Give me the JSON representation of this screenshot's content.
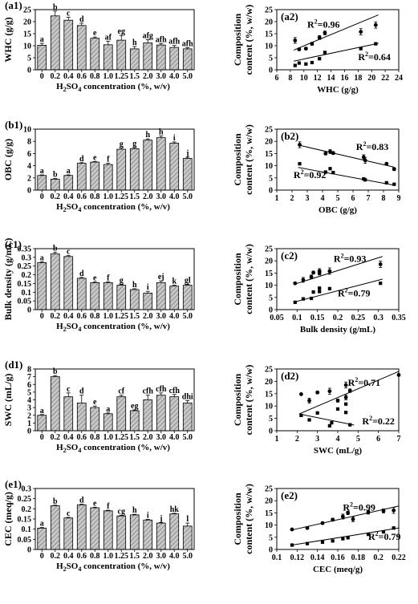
{
  "colors": {
    "bar_fill": "#c8c8c8",
    "bar_hatch": "#6e6e6e",
    "axis": "#000000",
    "point": "#000000"
  },
  "chart_data": [
    {
      "id": "a1",
      "type": "bar",
      "panel_label": "(a1)",
      "ylabel": "WHC (g/g)",
      "xlabel_parts": [
        "H",
        "2",
        "SO",
        "4",
        " concentration (%, w/v)"
      ],
      "categories": [
        "0",
        "0.2",
        "0.4",
        "0.6",
        "0.8",
        "1.0",
        "1.25",
        "1.5",
        "2.0",
        "3.0",
        "4.0",
        "5.0"
      ],
      "values": [
        10.2,
        22.4,
        20.6,
        18.4,
        13.1,
        10.4,
        12.3,
        8.7,
        11.2,
        10.3,
        9.3,
        8.7
      ],
      "errors": [
        0.8,
        2.0,
        1.2,
        1.0,
        0.5,
        1.5,
        2.0,
        1.0,
        1.3,
        0.6,
        0.8,
        0.5
      ],
      "letters": [
        "a",
        "b",
        "c",
        "d",
        "e",
        "af",
        "eg",
        "h",
        "afg",
        "afh",
        "afh",
        "afh"
      ],
      "ylim": [
        0,
        25
      ],
      "yticks": [
        0,
        5,
        10,
        15,
        20,
        25
      ]
    },
    {
      "id": "b1",
      "type": "bar",
      "panel_label": "(b1)",
      "ylabel": "OBC (g/g)",
      "xlabel_parts": [
        "H",
        "2",
        "SO",
        "4",
        " concentration (%, w/v)"
      ],
      "categories": [
        "0",
        "0.2",
        "0.4",
        "0.6",
        "0.8",
        "1.0",
        "1.25",
        "1.5",
        "2.0",
        "3.0",
        "4.0",
        "5.0"
      ],
      "values": [
        2.4,
        1.8,
        2.4,
        4.4,
        4.6,
        4.2,
        6.7,
        6.8,
        8.2,
        8.6,
        7.7,
        5.2
      ],
      "errors": [
        0.1,
        0.1,
        0.1,
        0.1,
        0.1,
        0.2,
        0.2,
        0.2,
        0.2,
        0.3,
        0.2,
        0.2
      ],
      "letters": [
        "a",
        "b",
        "a",
        "d",
        "e",
        "f",
        "g",
        "g",
        "h",
        "h",
        "i",
        "j"
      ],
      "ylim": [
        0,
        10
      ],
      "yticks": [
        0,
        2,
        4,
        6,
        8,
        10
      ]
    },
    {
      "id": "c1",
      "type": "bar",
      "panel_label": "(c1)",
      "ylabel": "Bulk density (g/mL)",
      "xlabel_parts": [
        "H",
        "2",
        "SO",
        "4",
        " concentration (%, w/v)"
      ],
      "categories": [
        "0",
        "0.2",
        "0.4",
        "0.6",
        "0.8",
        "1.0",
        "1.25",
        "1.5",
        "2.0",
        "3.0",
        "4.0",
        "5.0"
      ],
      "values": [
        0.27,
        0.32,
        0.305,
        0.18,
        0.155,
        0.155,
        0.14,
        0.115,
        0.095,
        0.155,
        0.135,
        0.14
      ],
      "errors": [
        0.005,
        0.01,
        0.005,
        0.005,
        0.005,
        0.005,
        0.005,
        0.005,
        0.01,
        0.01,
        0.005,
        0.005
      ],
      "letters": [
        "a",
        "b",
        "c",
        "d",
        "e",
        "f",
        "g",
        "h",
        "i",
        "ej",
        "k",
        "gl"
      ],
      "ylim": [
        0,
        0.35
      ],
      "yticks": [
        0,
        0.05,
        0.1,
        0.15,
        0.2,
        0.25,
        0.3,
        0.35
      ]
    },
    {
      "id": "d1",
      "type": "bar",
      "panel_label": "(d1)",
      "ylabel": "SWC (mL/g)",
      "xlabel_parts": [
        "H",
        "2",
        "SO",
        "4",
        " concentration (%, w/v)"
      ],
      "categories": [
        "0",
        "0.2",
        "0.4",
        "0.6",
        "0.8",
        "1.0",
        "1.25",
        "1.5",
        "2.0",
        "3.0",
        "4.0",
        "5.0"
      ],
      "values": [
        2.0,
        7.0,
        4.4,
        3.6,
        3.0,
        2.2,
        4.4,
        2.6,
        4.0,
        4.6,
        4.4,
        3.6
      ],
      "errors": [
        0.1,
        0.15,
        0.5,
        1.0,
        0.2,
        0.1,
        0.2,
        0.1,
        0.6,
        0.3,
        0.3,
        0.3
      ],
      "letters": [
        "a",
        "b",
        "c",
        "d",
        "e",
        "a",
        "cf",
        "eg",
        "cfh",
        "cfh",
        "cfh",
        "dhi"
      ],
      "ylim": [
        0,
        8
      ],
      "yticks": [
        0,
        1,
        2,
        3,
        4,
        5,
        6,
        7,
        8
      ]
    },
    {
      "id": "e1",
      "type": "bar",
      "panel_label": "(e1)",
      "ylabel": "CEC (meq/g)",
      "xlabel_parts": [
        "H",
        "2",
        "SO",
        "4",
        " concentration (%, w/v)"
      ],
      "categories": [
        "0",
        "0.2",
        "0.4",
        "0.6",
        "0.8",
        "1.0",
        "1.25",
        "1.5",
        "2.0",
        "3.0",
        "4.0",
        "5.0"
      ],
      "values": [
        0.105,
        0.215,
        0.155,
        0.22,
        0.205,
        0.19,
        0.165,
        0.17,
        0.145,
        0.13,
        0.175,
        0.115
      ],
      "errors": [
        0.003,
        0.003,
        0.003,
        0.003,
        0.003,
        0.003,
        0.003,
        0.003,
        0.003,
        0.003,
        0.003,
        0.015
      ],
      "letters": [
        "a",
        "b",
        "c",
        "d",
        "e",
        "f",
        "cg",
        "h",
        "i",
        "j",
        "hk",
        "l"
      ],
      "ylim": [
        0,
        0.3
      ],
      "yticks": [
        0,
        0.05,
        0.1,
        0.15,
        0.2,
        0.25,
        0.3
      ]
    },
    {
      "id": "a2",
      "type": "scatter",
      "panel_label": "(a2)",
      "ylabel_lines": [
        "Composition",
        "content (%, w/w)"
      ],
      "xlabel": "WHC (g/g)",
      "xlim": [
        6,
        24
      ],
      "xticks": [
        6,
        8,
        10,
        12,
        14,
        16,
        18,
        20,
        22,
        24
      ],
      "ylim": [
        0,
        25
      ],
      "yticks": [
        0,
        5,
        10,
        15,
        20,
        25
      ],
      "series": [
        {
          "r2": "0.96",
          "x": [
            8.7,
            9.3,
            10.3,
            11.2,
            12.3,
            13.1,
            18.4,
            20.6
          ],
          "y": [
            12.2,
            8.5,
            8.8,
            10.8,
            13.4,
            15.3,
            15.8,
            18.6
          ],
          "err": [
            1.2,
            0.5,
            0.5,
            0.6,
            0.8,
            0.8,
            1.3,
            1.3
          ],
          "fit": [
            [
              8.5,
              8.2
            ],
            [
              21,
              22.8
            ]
          ],
          "label_pos": [
            10.5,
            17.5
          ]
        },
        {
          "r2": "0.64",
          "x": [
            8.7,
            9.3,
            10.3,
            11.2,
            12.3,
            13.1,
            18.4,
            20.6
          ],
          "y": [
            1.8,
            2.8,
            2.4,
            3.0,
            4.6,
            7.2,
            8.8,
            10.8
          ],
          "err": [
            0,
            0,
            0,
            0,
            0,
            0,
            0,
            0
          ],
          "fit": [
            [
              8.5,
              3.6
            ],
            [
              21,
              11
            ]
          ],
          "label_pos": [
            18.0,
            4.0
          ]
        }
      ]
    },
    {
      "id": "b2",
      "type": "scatter",
      "panel_label": "(b2)",
      "ylabel_lines": [
        "Composition",
        "content (%, w/w)"
      ],
      "xlabel": "OBC (g/g)",
      "xlim": [
        1,
        9
      ],
      "xticks": [
        1,
        2,
        3,
        4,
        5,
        6,
        7,
        8,
        9
      ],
      "ylim": [
        0,
        25
      ],
      "yticks": [
        0,
        5,
        10,
        15,
        20,
        25
      ],
      "series": [
        {
          "r2": "0.83",
          "x": [
            2.5,
            4.2,
            4.5,
            4.7,
            6.7,
            6.8,
            8.2,
            8.7
          ],
          "y": [
            18.6,
            15.0,
            15.8,
            15.2,
            13.5,
            12.2,
            10.8,
            8.6
          ],
          "err": [
            1.2,
            0.5,
            0.8,
            0.6,
            1.0,
            1.2,
            0.4,
            0.6
          ],
          "fit": [
            [
              2.4,
              18.5
            ],
            [
              8.7,
              9.4
            ]
          ],
          "label_pos": [
            6.2,
            16.5
          ]
        },
        {
          "r2": "0.92",
          "x": [
            2.5,
            4.2,
            4.5,
            4.7,
            6.7,
            6.8,
            8.2,
            8.7
          ],
          "y": [
            10.8,
            7.4,
            8.8,
            7.2,
            4.6,
            4.2,
            3.0,
            2.4
          ],
          "err": [
            0,
            0,
            0,
            0,
            0,
            0,
            0,
            0
          ],
          "fit": [
            [
              2.4,
              9.3
            ],
            [
              8.7,
              2.0
            ]
          ],
          "label_pos": [
            2.1,
            5.0
          ]
        }
      ]
    },
    {
      "id": "c2",
      "type": "scatter",
      "panel_label": "(c2)",
      "ylabel_lines": [
        "Composition",
        "content (%, w/w)"
      ],
      "xlabel": "Bulk density (g/mL)",
      "xlim": [
        0.05,
        0.35
      ],
      "xticks": [
        0.05,
        0.1,
        0.15,
        0.2,
        0.25,
        0.3,
        0.35
      ],
      "ylim": [
        0,
        25
      ],
      "yticks": [
        0,
        5,
        10,
        15,
        20,
        25
      ],
      "series": [
        {
          "r2": "0.93",
          "x": [
            0.095,
            0.115,
            0.135,
            0.14,
            0.155,
            0.155,
            0.18,
            0.305
          ],
          "y": [
            10.8,
            12.2,
            13.4,
            15.2,
            15.8,
            15.0,
            15.8,
            18.6
          ],
          "err": [
            0.4,
            1.0,
            0.8,
            0.6,
            1.0,
            0.8,
            1.3,
            1.3
          ],
          "fit": [
            [
              0.095,
              10.5
            ],
            [
              0.31,
              21.8
            ]
          ],
          "label_pos": [
            0.19,
            19.5
          ]
        },
        {
          "r2": "0.79",
          "x": [
            0.095,
            0.115,
            0.135,
            0.14,
            0.155,
            0.155,
            0.18,
            0.305
          ],
          "y": [
            3.0,
            4.4,
            4.6,
            7.2,
            7.4,
            8.8,
            8.6,
            10.8
          ],
          "err": [
            0,
            0,
            0,
            0,
            0,
            0,
            0,
            0
          ],
          "fit": [
            [
              0.095,
              3.2
            ],
            [
              0.31,
              12.5
            ]
          ],
          "label_pos": [
            0.2,
            5.5
          ]
        }
      ]
    },
    {
      "id": "d2",
      "type": "scatter",
      "panel_label": "(d2)",
      "ylabel_lines": [
        "Composition",
        "content (%, w/w)"
      ],
      "xlabel": "SWC (mL/g)",
      "xlim": [
        1,
        7
      ],
      "xticks": [
        1,
        2,
        3,
        4,
        5,
        6,
        7
      ],
      "ylim": [
        0,
        25
      ],
      "yticks": [
        0,
        5,
        10,
        15,
        20,
        25
      ],
      "series": [
        {
          "r2": "0.71",
          "x": [
            2.2,
            2.6,
            3.0,
            3.6,
            4.0,
            4.4,
            4.4,
            4.6,
            7.0
          ],
          "y": [
            14.8,
            12.2,
            15.5,
            16.0,
            12.2,
            18.5,
            13.5,
            16.2,
            22.6
          ],
          "err": [
            0,
            1.0,
            0.5,
            1.2,
            0.6,
            1.2,
            1.0,
            0.7,
            0
          ],
          "fit": [
            [
              2.1,
              6.8
            ],
            [
              7.0,
              24.0
            ]
          ],
          "label_pos": [
            4.5,
            18.2
          ]
        },
        {
          "r2": "0.22",
          "x": [
            2.2,
            2.6,
            3.0,
            3.6,
            3.7,
            4.0,
            4.4,
            4.4,
            4.6
          ],
          "y": [
            6.2,
            4.4,
            7.2,
            2.0,
            3.2,
            8.8,
            7.4,
            10.8,
            2.4
          ],
          "err": [
            0,
            0,
            0,
            0,
            0,
            0,
            0,
            0,
            0
          ],
          "fit": [
            [
              2.1,
              6.8
            ],
            [
              4.8,
              2.3
            ]
          ],
          "label_pos": [
            5.2,
            2.6
          ]
        }
      ]
    },
    {
      "id": "e2",
      "type": "scatter",
      "panel_label": "(e2)",
      "ylabel_lines": [
        "Composition",
        "content (%, w/w)"
      ],
      "xlabel": "CEC (meq/g)",
      "xlim": [
        0.1,
        0.22
      ],
      "xticks": [
        0.1,
        0.12,
        0.14,
        0.16,
        0.18,
        0.2,
        0.22
      ],
      "ylim": [
        0,
        25
      ],
      "yticks": [
        0,
        5,
        10,
        15,
        20,
        25
      ],
      "series": [
        {
          "r2": "0.99",
          "x": [
            0.115,
            0.13,
            0.145,
            0.155,
            0.165,
            0.17,
            0.175,
            0.19,
            0.205,
            0.215
          ],
          "y": [
            8.2,
            8.8,
            10.8,
            12.2,
            13.5,
            15.0,
            12.4,
            15.3,
            15.8,
            16.0
          ],
          "err": [
            0.4,
            0.4,
            0.5,
            0.6,
            1.0,
            0.7,
            1.0,
            0.8,
            0.8,
            1.2
          ],
          "fit": [
            [
              0.115,
              8.0
            ],
            [
              0.22,
              17.8
            ]
          ],
          "label_pos": [
            0.165,
            16.0
          ]
        },
        {
          "r2": "0.79",
          "x": [
            0.115,
            0.13,
            0.145,
            0.155,
            0.165,
            0.17,
            0.19,
            0.205,
            0.215
          ],
          "y": [
            1.8,
            2.4,
            3.0,
            3.5,
            4.4,
            4.8,
            6.2,
            7.2,
            8.8
          ],
          "err": [
            0,
            0,
            0,
            0,
            0,
            0,
            0,
            0,
            0
          ],
          "fit": [
            [
              0.115,
              1.8
            ],
            [
              0.22,
              8.8
            ]
          ],
          "label_pos": [
            0.19,
            4.0
          ]
        }
      ]
    }
  ]
}
